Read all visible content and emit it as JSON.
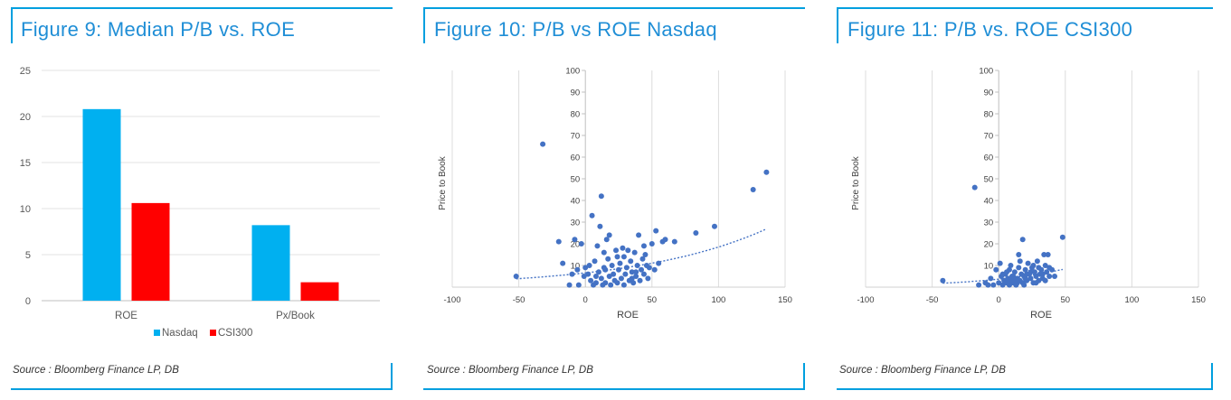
{
  "chart_data": [
    {
      "id": "fig9",
      "type": "bar",
      "title": "Figure 9: Median P/B vs. ROE",
      "categories": [
        "ROE",
        "Px/Book"
      ],
      "series": [
        {
          "name": "Nasdaq",
          "color": "#00b0f0",
          "values": [
            20.8,
            8.2
          ]
        },
        {
          "name": "CSI300",
          "color": "#ff0000",
          "values": [
            10.6,
            2.0
          ]
        }
      ],
      "ylim": [
        0,
        25
      ],
      "yticks": [
        0,
        5,
        10,
        15,
        20,
        25
      ],
      "xlabel": "",
      "ylabel": "",
      "legend_position": "bottom",
      "source": "Source : Bloomberg Finance LP, DB"
    },
    {
      "id": "fig10",
      "type": "scatter",
      "title": "Figure 10: P/B vs ROE Nasdaq",
      "xlabel": "ROE",
      "ylabel": "Price to Book",
      "xlim": [
        -100,
        150
      ],
      "ylim": [
        0,
        100
      ],
      "xticks": [
        -100,
        -50,
        0,
        50,
        100,
        150
      ],
      "yticks": [
        10,
        20,
        30,
        40,
        50,
        60,
        70,
        80,
        90,
        100
      ],
      "trendline": "exponential",
      "color": "#4472c4",
      "points": [
        [
          -52,
          5
        ],
        [
          -32,
          66
        ],
        [
          -20,
          21
        ],
        [
          -17,
          11
        ],
        [
          -12,
          1
        ],
        [
          -8,
          22
        ],
        [
          -6,
          8
        ],
        [
          -5,
          1
        ],
        [
          -3,
          20
        ],
        [
          -1,
          5
        ],
        [
          2,
          6
        ],
        [
          4,
          3
        ],
        [
          5,
          33
        ],
        [
          6,
          1
        ],
        [
          7,
          12
        ],
        [
          8,
          2
        ],
        [
          9,
          19
        ],
        [
          10,
          7
        ],
        [
          11,
          28
        ],
        [
          12,
          42
        ],
        [
          12,
          4
        ],
        [
          13,
          1
        ],
        [
          14,
          16
        ],
        [
          15,
          8
        ],
        [
          15,
          2
        ],
        [
          16,
          22
        ],
        [
          17,
          13
        ],
        [
          18,
          5
        ],
        [
          19,
          1
        ],
        [
          20,
          10
        ],
        [
          21,
          6
        ],
        [
          22,
          3
        ],
        [
          23,
          17
        ],
        [
          24,
          2
        ],
        [
          25,
          8
        ],
        [
          26,
          11
        ],
        [
          27,
          4
        ],
        [
          28,
          18
        ],
        [
          29,
          1
        ],
        [
          30,
          6
        ],
        [
          31,
          9
        ],
        [
          32,
          17
        ],
        [
          33,
          3
        ],
        [
          34,
          12
        ],
        [
          35,
          7
        ],
        [
          36,
          2
        ],
        [
          37,
          16
        ],
        [
          38,
          5
        ],
        [
          39,
          10
        ],
        [
          40,
          24
        ],
        [
          41,
          3
        ],
        [
          42,
          8
        ],
        [
          43,
          13
        ],
        [
          44,
          6
        ],
        [
          45,
          15
        ],
        [
          46,
          10
        ],
        [
          47,
          4
        ],
        [
          48,
          9
        ],
        [
          50,
          20
        ],
        [
          52,
          8
        ],
        [
          53,
          26
        ],
        [
          55,
          11
        ],
        [
          58,
          21
        ],
        [
          60,
          22
        ],
        [
          67,
          21
        ],
        [
          83,
          25
        ],
        [
          97,
          28
        ],
        [
          126,
          45
        ],
        [
          136,
          53
        ],
        [
          3,
          10
        ],
        [
          18,
          24
        ],
        [
          24,
          14
        ],
        [
          35,
          4
        ],
        [
          44,
          19
        ],
        [
          -10,
          6
        ],
        [
          0,
          9
        ],
        [
          8,
          5
        ],
        [
          29,
          14
        ],
        [
          38,
          7
        ],
        [
          14,
          9
        ]
      ],
      "source": "Source : Bloomberg Finance LP, DB"
    },
    {
      "id": "fig11",
      "type": "scatter",
      "title": "Figure 11: P/B vs. ROE CSI300",
      "xlabel": "ROE",
      "ylabel": "Price to Book",
      "xlim": [
        -100,
        150
      ],
      "ylim": [
        0,
        100
      ],
      "xticks": [
        -100,
        -50,
        0,
        50,
        100,
        150
      ],
      "yticks": [
        10,
        20,
        30,
        40,
        50,
        60,
        70,
        80,
        90,
        100
      ],
      "trendline": "exponential",
      "color": "#4472c4",
      "points": [
        [
          -42,
          3
        ],
        [
          -18,
          46
        ],
        [
          -15,
          1
        ],
        [
          -10,
          2
        ],
        [
          -6,
          4
        ],
        [
          -4,
          1
        ],
        [
          -2,
          8
        ],
        [
          0,
          2
        ],
        [
          1,
          11
        ],
        [
          2,
          5
        ],
        [
          3,
          1
        ],
        [
          4,
          3
        ],
        [
          5,
          6
        ],
        [
          6,
          2
        ],
        [
          7,
          4
        ],
        [
          8,
          1
        ],
        [
          8,
          8
        ],
        [
          9,
          3
        ],
        [
          10,
          5
        ],
        [
          11,
          2
        ],
        [
          12,
          7
        ],
        [
          13,
          1
        ],
        [
          14,
          4
        ],
        [
          15,
          15
        ],
        [
          15,
          9
        ],
        [
          16,
          3
        ],
        [
          17,
          6
        ],
        [
          18,
          2
        ],
        [
          19,
          5
        ],
        [
          20,
          8
        ],
        [
          21,
          3
        ],
        [
          22,
          11
        ],
        [
          23,
          6
        ],
        [
          24,
          4
        ],
        [
          25,
          9
        ],
        [
          26,
          2
        ],
        [
          27,
          7
        ],
        [
          28,
          5
        ],
        [
          29,
          12
        ],
        [
          30,
          3
        ],
        [
          31,
          6
        ],
        [
          32,
          8
        ],
        [
          33,
          4
        ],
        [
          34,
          15
        ],
        [
          35,
          10
        ],
        [
          36,
          7
        ],
        [
          37,
          15
        ],
        [
          38,
          5
        ],
        [
          40,
          8
        ],
        [
          42,
          5
        ],
        [
          48,
          23
        ],
        [
          18,
          22
        ],
        [
          6,
          7
        ],
        [
          11,
          5
        ],
        [
          14,
          2
        ],
        [
          20,
          4
        ],
        [
          24,
          7
        ],
        [
          28,
          2
        ],
        [
          33,
          6
        ],
        [
          -8,
          1
        ],
        [
          9,
          10
        ],
        [
          16,
          12
        ],
        [
          21,
          6
        ],
        [
          26,
          10
        ],
        [
          30,
          9
        ],
        [
          35,
          3
        ],
        [
          3,
          6
        ],
        [
          12,
          3
        ],
        [
          19,
          1
        ],
        [
          38,
          9
        ]
      ],
      "source": "Source : Bloomberg Finance LP, DB"
    }
  ]
}
